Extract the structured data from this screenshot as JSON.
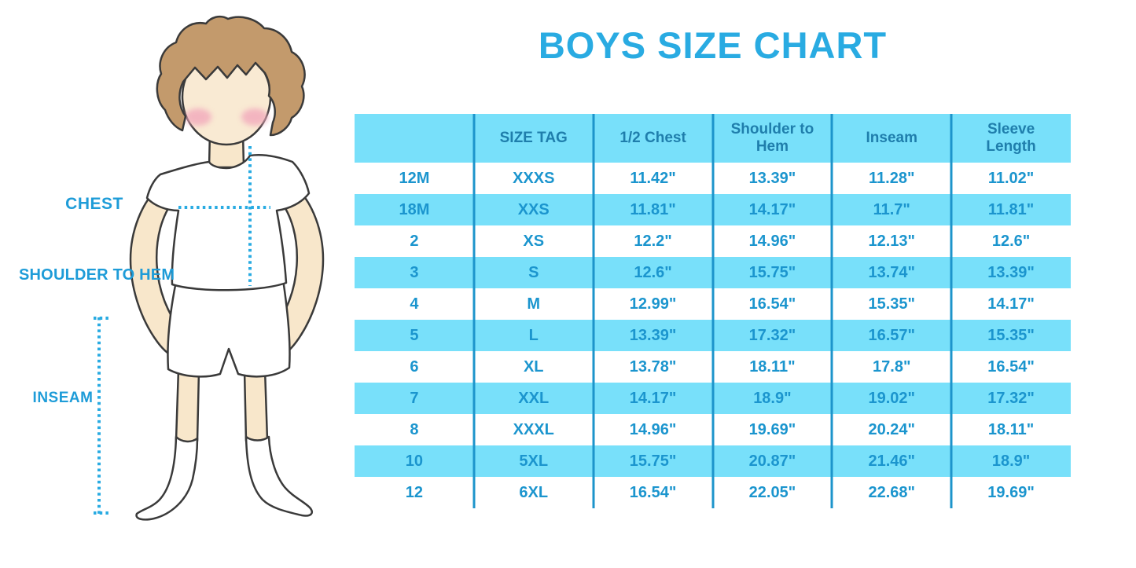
{
  "figure": {
    "description": "cartoon boy in white t-shirt, shorts and knee socks with dotted measurement guides",
    "labels": {
      "chest": "CHEST",
      "shoulder_to_hem": "SHOULDER TO HEM",
      "inseam": "INSEAM"
    }
  },
  "chart_data": {
    "type": "table",
    "title": "BOYS SIZE CHART",
    "columns": [
      "",
      "SIZE TAG",
      "1/2 Chest",
      "Shoulder to Hem",
      "Inseam",
      "Sleeve Length"
    ],
    "rows": [
      [
        "12M",
        "XXXS",
        "11.42\"",
        "13.39\"",
        "11.28\"",
        "11.02\""
      ],
      [
        "18M",
        "XXS",
        "11.81\"",
        "14.17\"",
        "11.7\"",
        "11.81\""
      ],
      [
        "2",
        "XS",
        "12.2\"",
        "14.96\"",
        "12.13\"",
        "12.6\""
      ],
      [
        "3",
        "S",
        "12.6\"",
        "15.75\"",
        "13.74\"",
        "13.39\""
      ],
      [
        "4",
        "M",
        "12.99\"",
        "16.54\"",
        "15.35\"",
        "14.17\""
      ],
      [
        "5",
        "L",
        "13.39\"",
        "17.32\"",
        "16.57\"",
        "15.35\""
      ],
      [
        "6",
        "XL",
        "13.78\"",
        "18.11\"",
        "17.8\"",
        "16.54\""
      ],
      [
        "7",
        "XXL",
        "14.17\"",
        "18.9\"",
        "19.02\"",
        "17.32\""
      ],
      [
        "8",
        "XXXL",
        "14.96\"",
        "19.69\"",
        "20.24\"",
        "18.11\""
      ],
      [
        "10",
        "5XL",
        "15.75\"",
        "20.87\"",
        "21.46\"",
        "18.9\""
      ],
      [
        "12",
        "6XL",
        "16.54\"",
        "22.05\"",
        "22.68\"",
        "19.69\""
      ]
    ],
    "layout": {
      "striping": "rows alternate white and light blue starting with white",
      "dividers": "5 vertical dark-cyan lines between columns, no horizontal lines, no outer border"
    }
  },
  "colors": {
    "title_blue": "#29ABE2",
    "label_blue": "#1E9CD8",
    "table_fill_blue": "#78E0FA",
    "table_divider_blue": "#1D94CB",
    "header_text_blue": "#1F7EAC",
    "cell_text_blue": "#1B95CE",
    "dotted_line_blue": "#29ABE2",
    "skin": "#F8E7CB",
    "hair_brown": "#C39A6C",
    "outline": "#3A3A3A",
    "cheek_pink": "#F2A9BC"
  }
}
